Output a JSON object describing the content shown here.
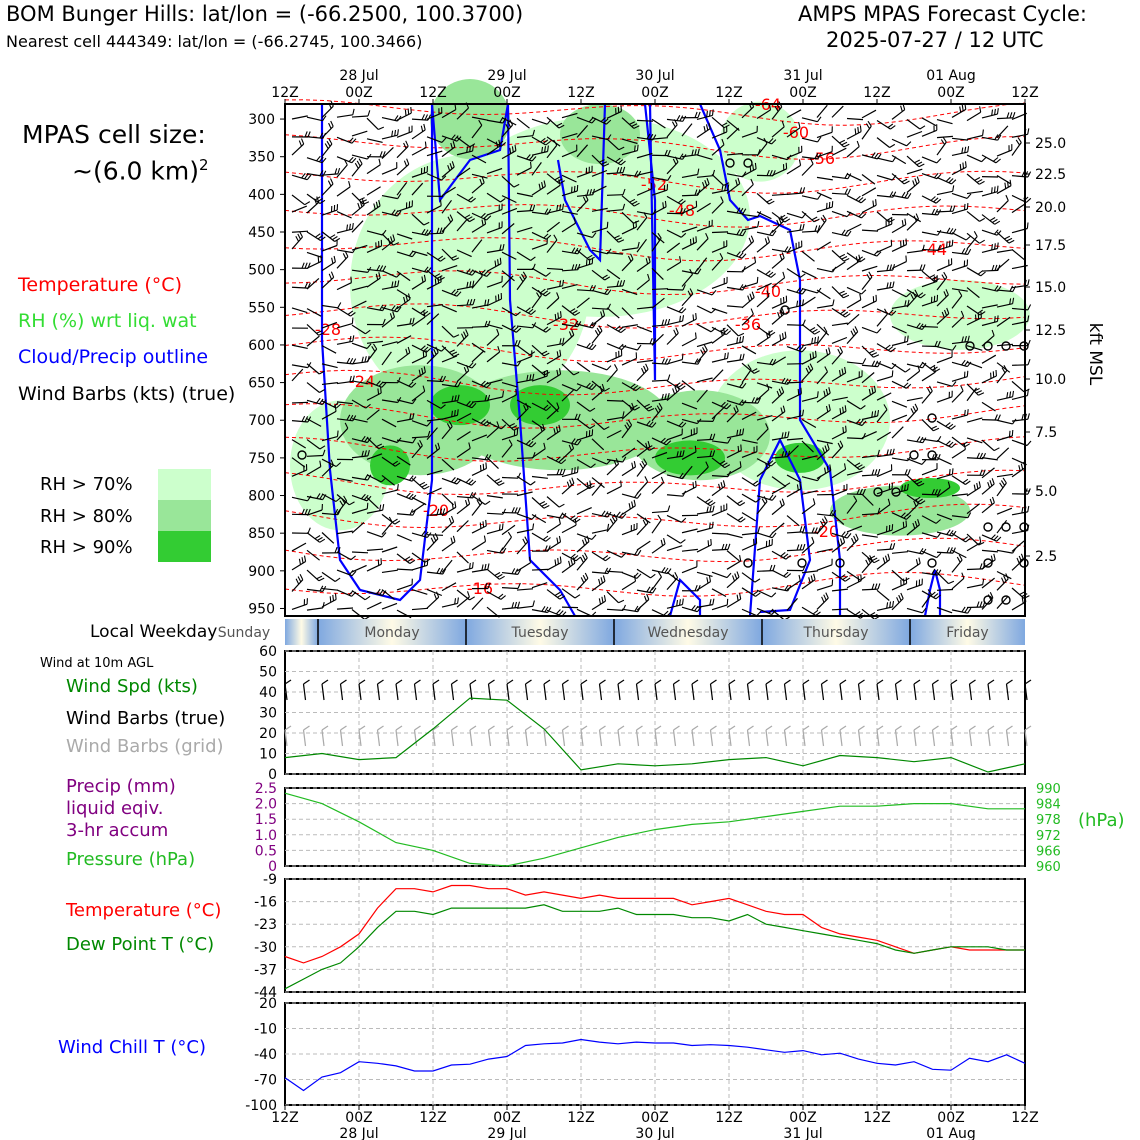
{
  "header": {
    "title_left": "BOM Bunger Hills: lat/lon = (-66.2500, 100.3700)",
    "subtitle_left": "Nearest cell 444349: lat/lon = (-66.2745, 100.3466)",
    "title_right_1": "AMPS MPAS Forecast Cycle:",
    "title_right_2": "2025-07-27 / 12 UTC"
  },
  "cell_size": {
    "line1": "MPAS cell size:",
    "line2": "~(6.0 km)",
    "sup": "2"
  },
  "legend": {
    "temperature": "Temperature (°C)",
    "rh": "RH (%) wrt liq. wat",
    "cloud": "Cloud/Precip outline",
    "wind": "Wind Barbs (kts) (true)",
    "rh70": "RH > 70%",
    "rh80": "RH > 80%",
    "rh90": "RH > 90%",
    "colors": {
      "temp": "#ff0000",
      "rh": "#33dd33",
      "cloud": "#0000ff",
      "rh70": "#ccffcc",
      "rh80": "#99e699",
      "rh90": "#33cc33"
    }
  },
  "side_labels": {
    "local_weekday": "Local Weekday",
    "wind_10m": "Wind at 10m AGL",
    "wind_spd": "Wind Spd (kts)",
    "wind_barbs_true": "Wind Barbs (true)",
    "wind_barbs_grid": "Wind Barbs (grid)",
    "precip1": "Precip (mm)",
    "precip2": "liquid eqiv.",
    "precip3": "3-hr accum",
    "pressure": "Pressure (hPa)",
    "hpa": "(hPa)",
    "temperature": "Temperature (°C)",
    "dewpoint": "Dew Point T (°C)",
    "windchill": "Wind Chill T (°C)"
  },
  "weekdays": [
    "Sunday",
    "Monday",
    "Tuesday",
    "Wednesday",
    "Thursday",
    "Friday"
  ],
  "chart_data": [
    {
      "type": "heatmap",
      "name": "cross-section",
      "y_axis_left": "pressure (hPa)",
      "y_ticks_left": [
        "300",
        "350",
        "400",
        "450",
        "500",
        "550",
        "600",
        "650",
        "700",
        "750",
        "800",
        "850",
        "900",
        "950"
      ],
      "y_axis_right": "kft MSL",
      "y_ticks_right": [
        "25.0",
        "22.5",
        "20.0",
        "17.5",
        "15.0",
        "12.5",
        "10.0",
        "7.5",
        "5.0",
        "2.5"
      ],
      "x_ticks_top": [
        "12Z",
        "00Z",
        "12Z",
        "00Z",
        "12Z",
        "00Z",
        "12Z",
        "00Z",
        "12Z",
        "00Z",
        "12Z"
      ],
      "x_dates_top": [
        "28 Jul",
        "29 Jul",
        "30 Jul",
        "31 Jul",
        "01 Aug"
      ],
      "temp_contour_labels": [
        "-64",
        "-60",
        "-56",
        "-52",
        "-48",
        "-44",
        "-40",
        "-36",
        "-32",
        "-28",
        "-24",
        "-20",
        "-16",
        "-20"
      ]
    },
    {
      "type": "line",
      "name": "wind speed",
      "ylim": [
        0,
        60
      ],
      "yticks": [
        "0",
        "10",
        "20",
        "30",
        "40",
        "50",
        "60"
      ],
      "x_hours": [
        0,
        6,
        12,
        18,
        24,
        30,
        36,
        42,
        48,
        54,
        60,
        66,
        72,
        78,
        84,
        90,
        96,
        102,
        108,
        114,
        120
      ],
      "values": [
        8,
        10,
        7,
        8,
        22,
        37,
        36,
        22,
        2,
        5,
        4,
        5,
        7,
        8,
        4,
        9,
        8,
        6,
        8,
        1,
        5
      ]
    },
    {
      "type": "line",
      "name": "pressure",
      "ylim_left": [
        0,
        2.5
      ],
      "yticks_left": [
        "0",
        "0.5",
        "1.0",
        "1.5",
        "2.0",
        "2.5"
      ],
      "ylim_right": [
        960,
        990
      ],
      "yticks_right": [
        "960",
        "966",
        "972",
        "978",
        "984",
        "990"
      ],
      "x_hours": [
        0,
        6,
        12,
        18,
        24,
        30,
        36,
        42,
        48,
        54,
        60,
        66,
        72,
        78,
        84,
        90,
        96,
        102,
        108,
        114,
        120
      ],
      "values": [
        988,
        984,
        977,
        969,
        966,
        961,
        960,
        963,
        967,
        971,
        974,
        976,
        977,
        979,
        981,
        983,
        983,
        984,
        984,
        982,
        982
      ]
    },
    {
      "type": "line",
      "name": "temperature and dew point",
      "ylim": [
        -44,
        -9
      ],
      "yticks": [
        "-44",
        "-37",
        "-30",
        "-23",
        "-16",
        "-9"
      ],
      "x_hours": [
        0,
        3,
        6,
        9,
        12,
        15,
        18,
        21,
        24,
        27,
        30,
        33,
        36,
        39,
        42,
        45,
        48,
        51,
        54,
        57,
        60,
        63,
        66,
        69,
        72,
        75,
        78,
        81,
        84,
        87,
        90,
        93,
        96,
        99,
        102,
        105,
        108,
        111,
        114,
        117,
        120
      ],
      "series": [
        {
          "name": "Temperature",
          "color": "#ff0000",
          "values": [
            -33,
            -35,
            -33,
            -30,
            -26,
            -18,
            -12,
            -12,
            -13,
            -11,
            -11,
            -12,
            -12,
            -14,
            -13,
            -14,
            -15,
            -14,
            -15,
            -15,
            -15,
            -15,
            -17,
            -16,
            -15,
            -17,
            -19,
            -20,
            -20,
            -24,
            -26,
            -27,
            -28,
            -30,
            -32,
            -31,
            -30,
            -31,
            -31,
            -31,
            -31
          ]
        },
        {
          "name": "Dew Point T",
          "color": "#008800",
          "values": [
            -43,
            -40,
            -37,
            -35,
            -30,
            -24,
            -19,
            -19,
            -20,
            -18,
            -18,
            -18,
            -18,
            -18,
            -17,
            -19,
            -19,
            -19,
            -18,
            -20,
            -20,
            -20,
            -21,
            -21,
            -22,
            -20,
            -23,
            -24,
            -25,
            -26,
            -27,
            -28,
            -29,
            -31,
            -32,
            -31,
            -30,
            -30,
            -30,
            -31,
            -31
          ]
        }
      ]
    },
    {
      "type": "line",
      "name": "wind chill",
      "ylim": [
        -100,
        20
      ],
      "yticks": [
        "-100",
        "-70",
        "-40",
        "-10",
        "20"
      ],
      "x_hours": [
        0,
        3,
        6,
        9,
        12,
        15,
        18,
        21,
        24,
        27,
        30,
        33,
        36,
        39,
        42,
        45,
        48,
        51,
        54,
        57,
        60,
        63,
        66,
        69,
        72,
        75,
        78,
        81,
        84,
        87,
        90,
        93,
        96,
        99,
        102,
        105,
        108,
        111,
        114,
        117,
        120
      ],
      "values": [
        -68,
        -83,
        -67,
        -62,
        -49,
        -51,
        -54,
        -60,
        -60,
        -53,
        -52,
        -46,
        -43,
        -30,
        -28,
        -27,
        -23,
        -26,
        -28,
        -26,
        -27,
        -27,
        -30,
        -29,
        -30,
        -32,
        -35,
        -38,
        -36,
        -41,
        -39,
        -46,
        -51,
        -53,
        -49,
        -58,
        -59,
        -45,
        -49,
        -41,
        -51
      ]
    }
  ],
  "x_axis_bottom": {
    "ticks": [
      "12Z",
      "00Z",
      "12Z",
      "00Z",
      "12Z",
      "00Z",
      "12Z",
      "00Z",
      "12Z",
      "00Z",
      "12Z"
    ],
    "dates": [
      "28 Jul",
      "29 Jul",
      "30 Jul",
      "31 Jul",
      "01 Aug"
    ]
  }
}
